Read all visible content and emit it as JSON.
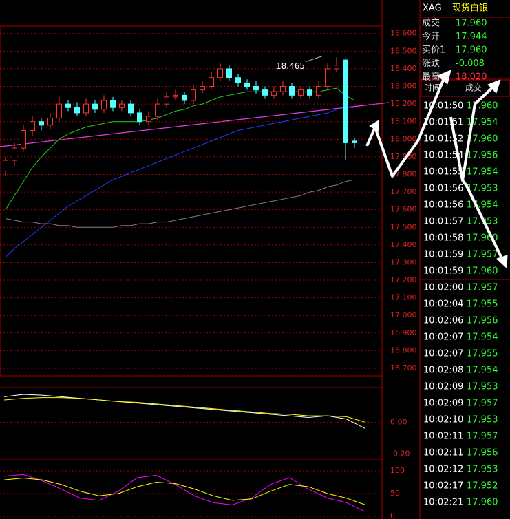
{
  "chart_data": [
    {
      "type": "candlestick",
      "annotation": "18.465",
      "open": [
        17.82,
        17.88,
        17.95,
        18.05,
        18.1,
        18.08,
        18.12,
        18.2,
        18.18,
        18.15,
        18.2,
        18.17,
        18.22,
        18.18,
        18.2,
        18.15,
        18.1,
        18.13,
        18.2,
        18.24,
        18.25,
        18.22,
        18.28,
        18.3,
        18.35,
        18.4,
        18.35,
        18.32,
        18.3,
        18.28,
        18.25,
        18.27,
        18.3,
        18.25,
        18.28,
        18.25,
        18.3,
        18.4,
        18.45,
        17.99
      ],
      "high": [
        17.9,
        17.98,
        18.08,
        18.13,
        18.12,
        18.15,
        18.24,
        18.22,
        18.21,
        18.23,
        18.22,
        18.25,
        18.24,
        18.22,
        18.22,
        18.17,
        18.16,
        18.23,
        18.27,
        18.28,
        18.27,
        18.31,
        18.33,
        18.38,
        18.43,
        18.42,
        18.37,
        18.34,
        18.33,
        18.3,
        18.3,
        18.33,
        18.32,
        18.3,
        18.3,
        18.33,
        18.43,
        18.465,
        18.46,
        18.01
      ],
      "low": [
        17.79,
        17.85,
        17.93,
        18.02,
        18.05,
        18.06,
        18.1,
        18.16,
        18.13,
        18.13,
        18.15,
        18.15,
        18.16,
        18.16,
        18.13,
        18.08,
        18.08,
        18.11,
        18.18,
        18.22,
        18.2,
        18.2,
        18.26,
        18.28,
        18.33,
        18.33,
        18.3,
        18.28,
        18.26,
        18.23,
        18.23,
        18.25,
        18.23,
        18.23,
        18.23,
        18.23,
        18.28,
        18.38,
        17.88,
        17.95
      ],
      "close": [
        17.88,
        17.95,
        18.05,
        18.1,
        18.08,
        18.12,
        18.2,
        18.18,
        18.15,
        18.2,
        18.17,
        18.22,
        18.18,
        18.2,
        18.15,
        18.1,
        18.13,
        18.2,
        18.24,
        18.25,
        18.22,
        18.28,
        18.3,
        18.35,
        18.4,
        18.35,
        18.32,
        18.3,
        18.28,
        18.25,
        18.27,
        18.3,
        18.25,
        18.28,
        18.25,
        18.3,
        18.4,
        18.42,
        17.98,
        17.98
      ],
      "up_color": "#ff3232",
      "down_color": "#54ffff",
      "lines": [
        {
          "color": "#1e3cff",
          "values": [
            17.33,
            17.38,
            17.42,
            17.46,
            17.5,
            17.54,
            17.58,
            17.62,
            17.65,
            17.68,
            17.71,
            17.74,
            17.77,
            17.79,
            17.81,
            17.83,
            17.85,
            17.87,
            17.89,
            17.91,
            17.93,
            17.95,
            17.97,
            17.99,
            18.01,
            18.03,
            18.05,
            18.06,
            18.07,
            18.08,
            18.09,
            18.1,
            18.11,
            18.12,
            18.13,
            18.14,
            18.15,
            18.17,
            18.18,
            18.18
          ]
        },
        {
          "color": "#808080",
          "values": [
            17.55,
            17.54,
            17.53,
            17.53,
            17.52,
            17.52,
            17.51,
            17.51,
            17.5,
            17.5,
            17.5,
            17.5,
            17.5,
            17.51,
            17.51,
            17.52,
            17.52,
            17.53,
            17.53,
            17.54,
            17.55,
            17.56,
            17.57,
            17.58,
            17.59,
            17.6,
            17.61,
            17.62,
            17.63,
            17.64,
            17.65,
            17.66,
            17.67,
            17.68,
            17.7,
            17.71,
            17.73,
            17.74,
            17.76,
            17.77
          ]
        },
        {
          "color": "#22cc22",
          "values": [
            17.6,
            17.68,
            17.76,
            17.84,
            17.9,
            17.95,
            18.0,
            18.03,
            18.05,
            18.07,
            18.08,
            18.09,
            18.1,
            18.1,
            18.1,
            18.1,
            18.11,
            18.12,
            18.14,
            18.16,
            18.17,
            18.19,
            18.2,
            18.22,
            18.24,
            18.25,
            18.26,
            18.27,
            18.27,
            18.27,
            18.27,
            18.27,
            18.27,
            18.27,
            18.27,
            18.27,
            18.28,
            18.29,
            18.25,
            18.22
          ]
        }
      ],
      "ylim": [
        16.657,
        18.642
      ],
      "yticks": [
        {
          "value": 18.6,
          "label": "18.600"
        },
        {
          "value": 18.5,
          "label": "18.500"
        },
        {
          "value": 18.4,
          "label": "18.400"
        },
        {
          "value": 18.3,
          "label": "18.300"
        },
        {
          "value": 18.2,
          "label": "18.200"
        },
        {
          "value": 18.1,
          "label": "18.100"
        },
        {
          "value": 18.0,
          "label": "18.000"
        },
        {
          "value": 17.9,
          "label": "17.900"
        },
        {
          "value": 17.8,
          "label": "17.800"
        },
        {
          "value": 17.7,
          "label": "17.700"
        },
        {
          "value": 17.6,
          "label": "17.600"
        },
        {
          "value": 17.5,
          "label": "17.500"
        },
        {
          "value": 17.4,
          "label": "17.400"
        },
        {
          "value": 17.3,
          "label": "17.300"
        },
        {
          "value": 17.2,
          "label": "17.200"
        },
        {
          "value": 17.1,
          "label": "17.100"
        },
        {
          "value": 17.0,
          "label": "17.000"
        },
        {
          "value": 16.9,
          "label": "16.900"
        },
        {
          "value": 16.8,
          "label": "16.800"
        },
        {
          "value": 16.7,
          "label": "16.700"
        }
      ],
      "grid": true
    },
    {
      "type": "line",
      "ylim": [
        -0.236,
        0.218
      ],
      "yticks": [
        {
          "value": 0,
          "label": "0.00"
        },
        {
          "value": -0.2,
          "label": "-0.20"
        }
      ],
      "series": [
        {
          "color": "#ffffff",
          "values": [
            0.16,
            0.175,
            0.17,
            0.16,
            0.15,
            0.14,
            0.13,
            0.12,
            0.11,
            0.1,
            0.09,
            0.08,
            0.07,
            0.06,
            0.05,
            0.04,
            0.03,
            0.04,
            0.02,
            -0.04
          ]
        },
        {
          "color": "#ffff00",
          "values": [
            0.14,
            0.15,
            0.155,
            0.155,
            0.15,
            0.14,
            0.13,
            0.125,
            0.115,
            0.105,
            0.095,
            0.085,
            0.075,
            0.065,
            0.055,
            0.05,
            0.04,
            0.04,
            0.035,
            0.0
          ]
        }
      ]
    },
    {
      "type": "line",
      "ylim": [
        -6,
        106
      ],
      "yticks": [
        100,
        50,
        0
      ],
      "series": [
        {
          "color": "#ff00ff",
          "values": [
            88,
            92,
            78,
            60,
            40,
            35,
            55,
            85,
            90,
            70,
            45,
            30,
            25,
            40,
            70,
            85,
            60,
            40,
            30,
            10
          ]
        },
        {
          "color": "#ffff00",
          "values": [
            80,
            84,
            80,
            70,
            55,
            45,
            50,
            65,
            75,
            72,
            60,
            45,
            35,
            38,
            55,
            70,
            65,
            50,
            40,
            25
          ]
        }
      ]
    }
  ],
  "quote": {
    "symbol": "XAG",
    "name": "现货白银",
    "rows": [
      [
        "成交",
        "17.960"
      ],
      [
        "今开",
        "17.944"
      ],
      [
        "买价1",
        "17.960"
      ],
      [
        "涨跌",
        "-0.008"
      ],
      [
        "最高",
        "18.020"
      ]
    ]
  },
  "trades": {
    "header": [
      "时间",
      "成交"
    ],
    "rows": [
      [
        "10:01:50",
        "17.960"
      ],
      [
        "10:01:51",
        "17.954"
      ],
      [
        "10:01:52",
        "17.960"
      ],
      [
        "10:01:54",
        "17.956"
      ],
      [
        "10:01:55",
        "17.954"
      ],
      [
        "10:01:56",
        "17.953"
      ],
      [
        "10:01:56",
        "17.954"
      ],
      [
        "10:01:57",
        "17.953"
      ],
      [
        "10:01:58",
        "17.960"
      ],
      [
        "10:01:59",
        "17.957"
      ],
      [
        "10:01:59",
        "17.960"
      ],
      [
        "10:02:00",
        "17.957"
      ],
      [
        "10:02:04",
        "17.955"
      ],
      [
        "10:02:06",
        "17.956"
      ],
      [
        "10:02:07",
        "17.954"
      ],
      [
        "10:02:07",
        "17.955"
      ],
      [
        "10:02:08",
        "17.954"
      ],
      [
        "10:02:09",
        "17.953"
      ],
      [
        "10:02:09",
        "17.957"
      ],
      [
        "10:02:10",
        "17.953"
      ],
      [
        "10:02:11",
        "17.957"
      ],
      [
        "10:02:11",
        "17.956"
      ],
      [
        "10:02:12",
        "17.953"
      ],
      [
        "10:02:17",
        "17.952"
      ],
      [
        "10:02:21",
        "17.960"
      ]
    ]
  }
}
